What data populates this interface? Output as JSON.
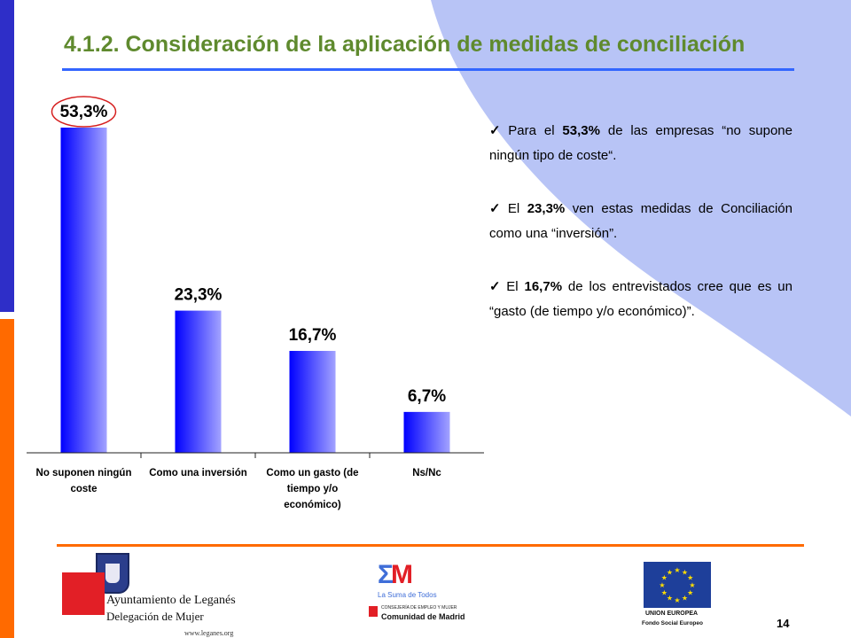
{
  "slide": {
    "title": "4.1.2. Consideración de la aplicación de medidas de conciliación",
    "page_number": "14"
  },
  "chart_data": {
    "type": "bar",
    "categories": [
      "No suponen ningún coste",
      "Como una inversión",
      "Como un gasto (de tiempo y/o económico)",
      "Ns/Nc"
    ],
    "values": [
      53.3,
      23.3,
      16.7,
      6.7
    ],
    "data_labels": [
      "53,3%",
      "23,3%",
      "16,7%",
      "6,7%"
    ],
    "highlighted_category": "No suponen ningún coste",
    "colors": {
      "bar_start": "#0000ff",
      "bar_end": "#a3a3ff",
      "highlight_ring": "#d62020"
    }
  },
  "bullets": [
    {
      "prefix": "Para el ",
      "value": "53,3%",
      "suffix": " de las empresas “no supone ningún tipo de coste“."
    },
    {
      "prefix": "El ",
      "value": "23,3%",
      "suffix": " ven estas medidas de Conciliación como una “inversión”."
    },
    {
      "prefix": "El ",
      "value": "16,7%",
      "suffix": " de los entrevistados cree que es un “gasto (de tiempo y/o económico)”."
    }
  ],
  "logos": {
    "leganes": {
      "title": "Ayuntamiento de Leganés",
      "subtitle": "Delegación de Mujer",
      "web": "www.leganes.org"
    },
    "madrid": {
      "tagline": "La Suma de Todos",
      "department": "CONSEJERÍA DE EMPLEO Y MUJER",
      "name": "Comunidad de Madrid"
    },
    "eu": {
      "name": "UNION EUROPEA",
      "fund": "Fondo Social Europeo"
    }
  },
  "colors": {
    "title": "#5f8a2e",
    "title_line": "#3366ff",
    "sidebar_top": "#2e2ec8",
    "sidebar_bottom": "#ff6a00",
    "footer_line": "#ff6a00",
    "background_shape": "#b8c4f6"
  }
}
